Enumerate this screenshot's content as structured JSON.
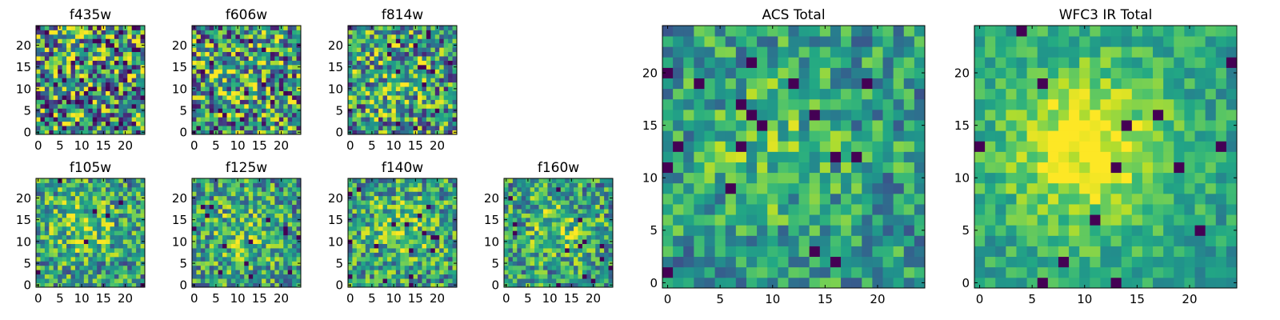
{
  "chart_data": [
    {
      "type": "heatmap",
      "title": "f435w",
      "grid": false,
      "xlim": [
        -0.5,
        24.5
      ],
      "ylim": [
        -0.5,
        24.5
      ],
      "xticks": [
        0,
        5,
        10,
        15,
        20
      ],
      "yticks": [
        0,
        5,
        10,
        15,
        20
      ],
      "xtick_labels": [
        "0",
        "5",
        "10",
        "15",
        "20"
      ],
      "ytick_labels": [
        "0",
        "5",
        "10",
        "15",
        "20"
      ],
      "colormap": "viridis",
      "value_range": [
        0,
        1
      ],
      "blob": {
        "x": 12,
        "y": 12,
        "sigma": 7,
        "strength": 0.08
      },
      "noise": 0.78,
      "seed": 11
    },
    {
      "type": "heatmap",
      "title": "f606w",
      "grid": false,
      "xlim": [
        -0.5,
        24.5
      ],
      "ylim": [
        -0.5,
        24.5
      ],
      "xticks": [
        0,
        5,
        10,
        15,
        20
      ],
      "yticks": [
        0,
        5,
        10,
        15,
        20
      ],
      "xtick_labels": [
        "0",
        "5",
        "10",
        "15",
        "20"
      ],
      "ytick_labels": [
        "0",
        "5",
        "10",
        "15",
        "20"
      ],
      "colormap": "viridis",
      "value_range": [
        0,
        1
      ],
      "blob": {
        "x": 11,
        "y": 12,
        "sigma": 6,
        "strength": 0.15
      },
      "noise": 0.72,
      "seed": 23
    },
    {
      "type": "heatmap",
      "title": "f814w",
      "grid": false,
      "xlim": [
        -0.5,
        24.5
      ],
      "ylim": [
        -0.5,
        24.5
      ],
      "xticks": [
        0,
        5,
        10,
        15,
        20
      ],
      "yticks": [
        0,
        5,
        10,
        15,
        20
      ],
      "xtick_labels": [
        "0",
        "5",
        "10",
        "15",
        "20"
      ],
      "ytick_labels": [
        "0",
        "5",
        "10",
        "15",
        "20"
      ],
      "colormap": "viridis",
      "value_range": [
        0,
        1
      ],
      "blob": {
        "x": 11,
        "y": 11,
        "sigma": 5,
        "strength": 0.25
      },
      "noise": 0.65,
      "seed": 37
    },
    {
      "type": "heatmap",
      "title": "f105w",
      "grid": false,
      "xlim": [
        -0.5,
        24.5
      ],
      "ylim": [
        -0.5,
        24.5
      ],
      "xticks": [
        0,
        5,
        10,
        15,
        20
      ],
      "yticks": [
        0,
        5,
        10,
        15,
        20
      ],
      "xtick_labels": [
        "0",
        "5",
        "10",
        "15",
        "20"
      ],
      "ytick_labels": [
        "0",
        "5",
        "10",
        "15",
        "20"
      ],
      "colormap": "viridis",
      "value_range": [
        0,
        1
      ],
      "blob": {
        "x": 10,
        "y": 14,
        "sigma": 6,
        "strength": 0.35
      },
      "noise": 0.5,
      "seed": 41
    },
    {
      "type": "heatmap",
      "title": "f125w",
      "grid": false,
      "xlim": [
        -0.5,
        24.5
      ],
      "ylim": [
        -0.5,
        24.5
      ],
      "xticks": [
        0,
        5,
        10,
        15,
        20
      ],
      "yticks": [
        0,
        5,
        10,
        15,
        20
      ],
      "xtick_labels": [
        "0",
        "5",
        "10",
        "15",
        "20"
      ],
      "ytick_labels": [
        "0",
        "5",
        "10",
        "15",
        "20"
      ],
      "colormap": "viridis",
      "value_range": [
        0,
        1
      ],
      "blob": {
        "x": 11,
        "y": 12,
        "sigma": 6,
        "strength": 0.3
      },
      "noise": 0.5,
      "seed": 53
    },
    {
      "type": "heatmap",
      "title": "f140w",
      "grid": false,
      "xlim": [
        -0.5,
        24.5
      ],
      "ylim": [
        -0.5,
        24.5
      ],
      "xticks": [
        0,
        5,
        10,
        15,
        20
      ],
      "yticks": [
        0,
        5,
        10,
        15,
        20
      ],
      "xtick_labels": [
        "0",
        "5",
        "10",
        "15",
        "20"
      ],
      "ytick_labels": [
        "0",
        "5",
        "10",
        "15",
        "20"
      ],
      "colormap": "viridis",
      "value_range": [
        0,
        1
      ],
      "blob": {
        "x": 12,
        "y": 13,
        "sigma": 6,
        "strength": 0.35
      },
      "noise": 0.5,
      "seed": 67
    },
    {
      "type": "heatmap",
      "title": "f160w",
      "grid": false,
      "xlim": [
        -0.5,
        24.5
      ],
      "ylim": [
        -0.5,
        24.5
      ],
      "xticks": [
        0,
        5,
        10,
        15,
        20
      ],
      "yticks": [
        0,
        5,
        10,
        15,
        20
      ],
      "xtick_labels": [
        "0",
        "5",
        "10",
        "15",
        "20"
      ],
      "ytick_labels": [
        "0",
        "5",
        "10",
        "15",
        "20"
      ],
      "colormap": "viridis",
      "value_range": [
        0,
        1
      ],
      "blob": {
        "x": 11,
        "y": 13,
        "sigma": 5,
        "strength": 0.4
      },
      "noise": 0.5,
      "seed": 71
    },
    {
      "type": "heatmap",
      "title": "ACS Total",
      "grid": false,
      "xlim": [
        -0.5,
        24.5
      ],
      "ylim": [
        -0.5,
        24.5
      ],
      "xticks": [
        0,
        5,
        10,
        15,
        20
      ],
      "yticks": [
        0,
        5,
        10,
        15,
        20
      ],
      "xtick_labels": [
        "0",
        "5",
        "10",
        "15",
        "20"
      ],
      "ytick_labels": [
        "0",
        "5",
        "10",
        "15",
        "20"
      ],
      "colormap": "viridis",
      "value_range": [
        0,
        1
      ],
      "blob": {
        "x": 10,
        "y": 13,
        "sigma": 5,
        "strength": 0.3
      },
      "noise": 0.4,
      "seed": 83
    },
    {
      "type": "heatmap",
      "title": "WFC3 IR Total",
      "grid": false,
      "xlim": [
        -0.5,
        24.5
      ],
      "ylim": [
        -0.5,
        24.5
      ],
      "xticks": [
        0,
        5,
        10,
        15,
        20
      ],
      "yticks": [
        0,
        5,
        10,
        15,
        20
      ],
      "xtick_labels": [
        "0",
        "5",
        "10",
        "15",
        "20"
      ],
      "ytick_labels": [
        "0",
        "5",
        "10",
        "15",
        "20"
      ],
      "colormap": "viridis",
      "value_range": [
        0,
        1
      ],
      "blob": {
        "x": 10,
        "y": 13,
        "sigma": 5,
        "strength": 0.8
      },
      "noise": 0.25,
      "seed": 97
    }
  ]
}
